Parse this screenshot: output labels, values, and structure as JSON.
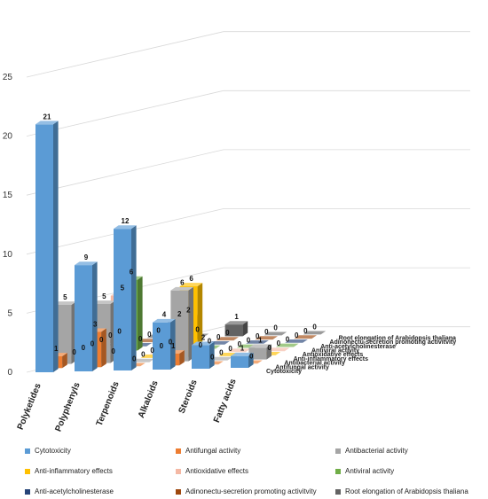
{
  "chart_data": {
    "type": "bar",
    "categories": [
      "Polyketides",
      "Polyphenyls",
      "Terpenoids",
      "Alkaloids",
      "Steroids",
      "Fatty acids"
    ],
    "ylim": [
      0,
      25
    ],
    "yticks": [
      0,
      5,
      10,
      15,
      20,
      25
    ],
    "grid": true,
    "legend_position": "bottom",
    "series": [
      {
        "name": "Cytotoxicity",
        "color": "#5b9bd5",
        "values": [
          21,
          9,
          12,
          4,
          2,
          1
        ]
      },
      {
        "name": "Antifungal activity",
        "color": "#ed7d31",
        "values": [
          1,
          3,
          0,
          1,
          0,
          0
        ]
      },
      {
        "name": "Antibacterial activity",
        "color": "#a5a5a5",
        "values": [
          5,
          5,
          0,
          6,
          0,
          1
        ]
      },
      {
        "name": "Anti-inflammatory effects",
        "color": "#ffc000",
        "values": [
          0,
          0,
          0,
          6,
          0,
          0
        ]
      },
      {
        "name": "Antioxidative effects",
        "color": "#f4b8a4",
        "values": [
          0,
          5,
          0,
          0,
          0,
          0
        ]
      },
      {
        "name": "Antiviral activity",
        "color": "#70ad47",
        "values": [
          0,
          6,
          0,
          0,
          0,
          0
        ]
      },
      {
        "name": "Anti-acetylcholinesterase",
        "color": "#264478",
        "values": [
          0,
          0,
          2,
          0,
          0,
          0
        ]
      },
      {
        "name": "Adinonectu-secretion promoting activitvity",
        "color": "#9e480e",
        "values": [
          0,
          0,
          2,
          0,
          0,
          0
        ]
      },
      {
        "name": "Root elongation of Arabidopsis thaliana",
        "color": "#636363",
        "values": [
          0,
          0,
          0,
          1,
          0,
          0
        ]
      }
    ]
  }
}
